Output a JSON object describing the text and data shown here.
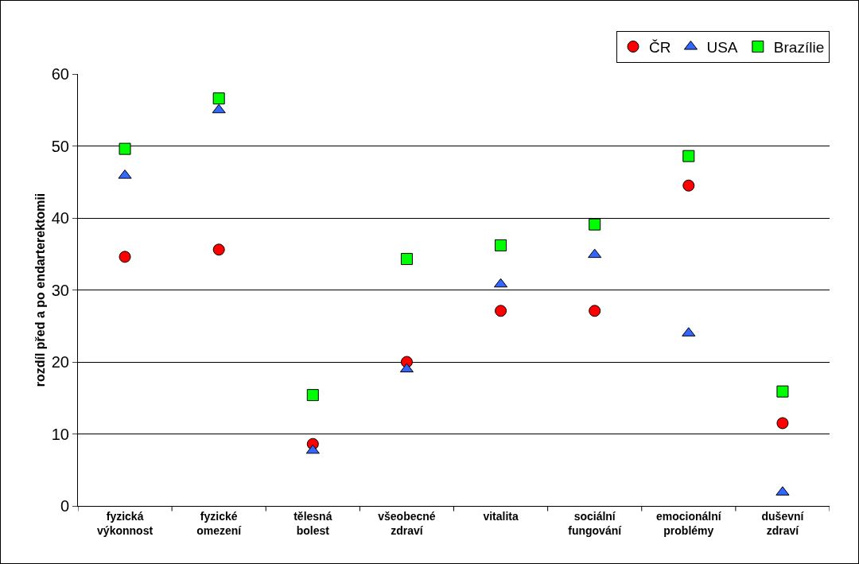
{
  "chart_data": {
    "type": "scatter",
    "ylabel": "rozdíl před a po endarterektomii",
    "categories": [
      "fyzická\nvýkonnost",
      "fyzické\nomezení",
      "tělesná\nbolest",
      "všeobecné\nzdraví",
      "vitalita",
      "sociální\nfungování",
      "emocionální\nproblémy",
      "duševní\nzdraví"
    ],
    "series": [
      {
        "name": "ČR",
        "color": "#ff0000",
        "marker": "circle",
        "values": [
          34.6,
          35.6,
          8.6,
          20,
          27.1,
          27.1,
          44.5,
          11.5
        ]
      },
      {
        "name": "USA",
        "color": "#3366ff",
        "marker": "triangle",
        "values": [
          45.9,
          55,
          7.7,
          19,
          30.8,
          34.9,
          24,
          1.9
        ]
      },
      {
        "name": "Brazílie",
        "color": "#00ff00",
        "marker": "square",
        "values": [
          49.6,
          56.6,
          15.4,
          34.3,
          36.2,
          39.1,
          48.6,
          15.9
        ]
      }
    ],
    "ylim": [
      0,
      60
    ],
    "yticks": [
      0,
      10,
      20,
      30,
      40,
      50,
      60
    ],
    "grid": "y",
    "legend": "top right"
  }
}
